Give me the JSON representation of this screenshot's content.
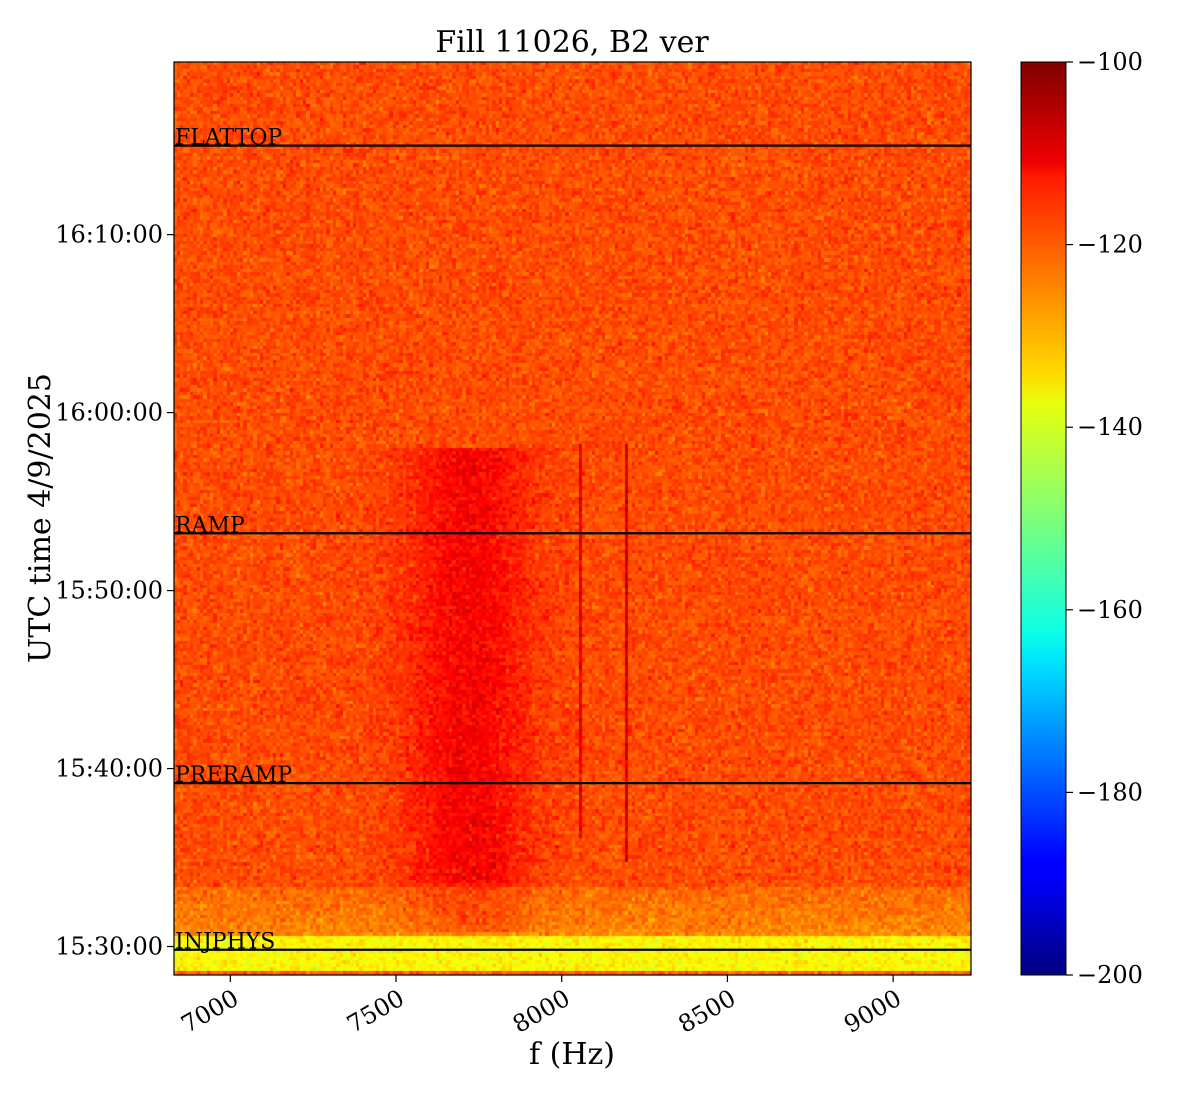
{
  "chart_data": {
    "type": "heatmap",
    "title": "Fill 11026, B2 ver",
    "xlabel": "f (Hz)",
    "ylabel": "UTC time 4/9/2025",
    "xlim": [
      6830,
      9235
    ],
    "ylim_minutes_after_1530": [
      -1.6,
      49.7
    ],
    "xticks": [
      {
        "value": 7000,
        "label": "7000"
      },
      {
        "value": 7500,
        "label": "7500"
      },
      {
        "value": 8000,
        "label": "8000"
      },
      {
        "value": 8500,
        "label": "8500"
      },
      {
        "value": 9000,
        "label": "9000"
      }
    ],
    "yticks": [
      {
        "value": 0,
        "label": "15:30:00"
      },
      {
        "value": 10,
        "label": "15:40:00"
      },
      {
        "value": 20,
        "label": "15:50:00"
      },
      {
        "value": 30,
        "label": "16:00:00"
      },
      {
        "value": 40,
        "label": "16:10:00"
      }
    ],
    "colorbar": {
      "colormap": "jet",
      "min": -200,
      "max": -100,
      "ticks": [
        {
          "value": -100,
          "label": "−100"
        },
        {
          "value": -120,
          "label": "−120"
        },
        {
          "value": -140,
          "label": "−140"
        },
        {
          "value": -160,
          "label": "−160"
        },
        {
          "value": -180,
          "label": "−180"
        },
        {
          "value": -200,
          "label": "−200"
        }
      ]
    },
    "markers": [
      {
        "label": "INJPHYS",
        "time": 15.497,
        "time_label": "15:29:49"
      },
      {
        "label": "PRERAMP",
        "time": 15.653,
        "time_label": "15:39:10"
      },
      {
        "label": "RAMP",
        "time": 15.887,
        "time_label": "15:53:13"
      },
      {
        "label": "FLATTOP",
        "time": 16.25,
        "time_label": "16:15:00"
      }
    ],
    "background_level": -120,
    "features": {
      "broadband_excitation": {
        "f_center": 7720,
        "f_width": 260,
        "t_start": 15.513,
        "t_end": 15.968,
        "level": -112
      },
      "narrow_lines": [
        {
          "f": 8055,
          "t_start": 15.6,
          "t_end": 15.97,
          "level": -110
        },
        {
          "f": 8195,
          "t_start": 15.58,
          "t_end": 15.97,
          "level": -108
        }
      ],
      "low_level_band": {
        "t_start": 15.475,
        "t_end": 15.51,
        "level": -137
      }
    }
  }
}
